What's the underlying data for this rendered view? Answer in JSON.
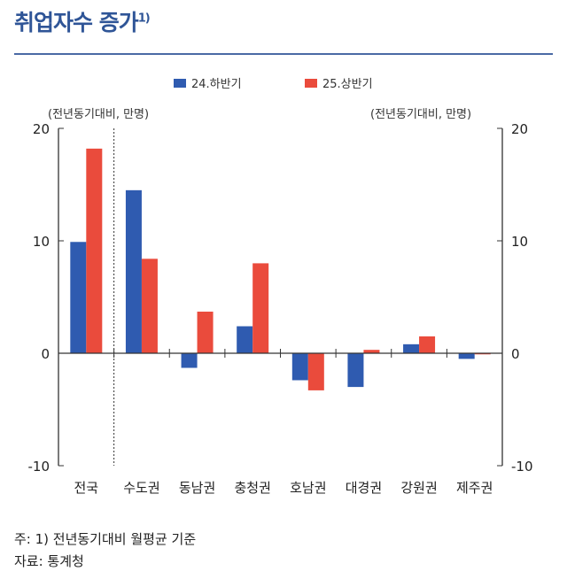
{
  "title": "취업자수 증가",
  "title_sup": "1)",
  "chart_data": {
    "type": "bar",
    "categories": [
      "전국",
      "수도권",
      "동남권",
      "충청권",
      "호남권",
      "대경권",
      "강원권",
      "제주권"
    ],
    "series": [
      {
        "name": "24.하반기",
        "color": "#2f5bb0",
        "values": [
          9.9,
          14.5,
          -1.3,
          2.4,
          -2.4,
          -3.0,
          0.8,
          -0.5
        ]
      },
      {
        "name": "25.상반기",
        "color": "#ea4b3c",
        "values": [
          18.2,
          8.4,
          3.7,
          8.0,
          -3.3,
          0.3,
          1.5,
          -0.1
        ]
      }
    ],
    "ylim": [
      -10,
      20
    ],
    "yticks": [
      -10,
      0,
      10,
      20
    ],
    "ylabel_left": "(전년동기대비, 만명)",
    "ylabel_right": "(전년동기대비, 만명)",
    "legend": "top-center",
    "grid": false
  },
  "notes": {
    "footnote": "주: 1) 전년동기대비 월평균 기준",
    "source": "자료: 통계청"
  }
}
